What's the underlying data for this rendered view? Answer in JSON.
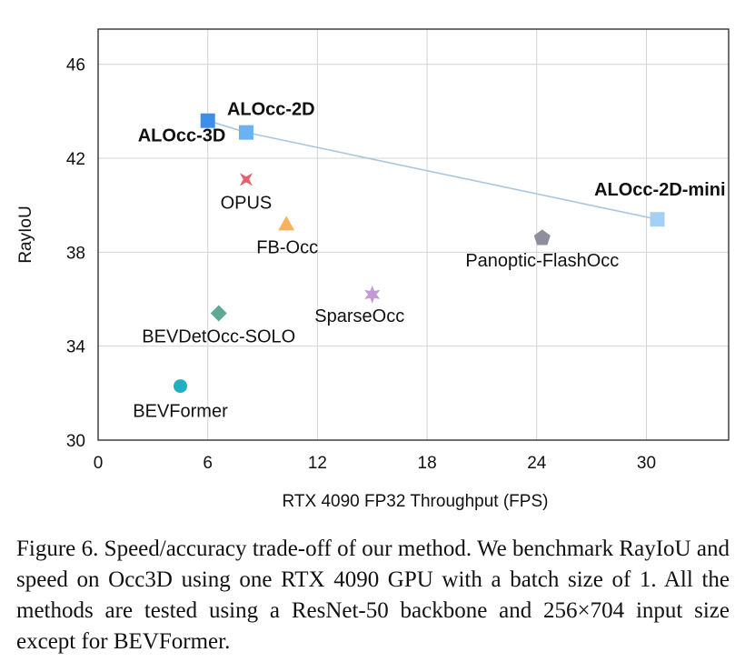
{
  "chart_data": {
    "type": "scatter",
    "xlabel": "RTX 4090 FP32 Throughput (FPS)",
    "ylabel": "RayIoU",
    "xlim": [
      0,
      34.5
    ],
    "ylim": [
      30,
      47.5
    ],
    "x_ticks": [
      0,
      6,
      12,
      18,
      24,
      30
    ],
    "y_ticks": [
      30,
      34,
      38,
      42,
      46
    ],
    "grid": true,
    "points": [
      {
        "name": "ALOcc-3D",
        "x": 6.0,
        "y": 43.6,
        "marker": "square",
        "color": "#3d8fea",
        "bold": true
      },
      {
        "name": "ALOcc-2D",
        "x": 8.1,
        "y": 43.1,
        "marker": "square",
        "color": "#6ab2f2",
        "bold": true
      },
      {
        "name": "ALOcc-2D-mini",
        "x": 30.6,
        "y": 39.4,
        "marker": "square",
        "color": "#a5d0f5",
        "bold": true
      },
      {
        "name": "OPUS",
        "x": 8.1,
        "y": 41.1,
        "marker": "star4",
        "color": "#e4606a",
        "bold": false
      },
      {
        "name": "FB-Occ",
        "x": 10.3,
        "y": 39.2,
        "marker": "triangle",
        "color": "#f6b25c",
        "bold": false
      },
      {
        "name": "Panoptic-FlashOcc",
        "x": 24.3,
        "y": 38.6,
        "marker": "pentagon",
        "color": "#8e8e9e",
        "bold": false
      },
      {
        "name": "SparseOcc",
        "x": 15.0,
        "y": 36.2,
        "marker": "star6",
        "color": "#c29ad6",
        "bold": false
      },
      {
        "name": "BEVDetOcc-SOLO",
        "x": 6.6,
        "y": 35.4,
        "marker": "diamond",
        "color": "#5fa896",
        "bold": false
      },
      {
        "name": "BEVFormer",
        "x": 4.5,
        "y": 32.3,
        "marker": "circle",
        "color": "#20b0c0",
        "bold": false
      }
    ],
    "trend_line": {
      "through": [
        "ALOcc-3D",
        "ALOcc-2D",
        "ALOcc-2D-mini"
      ],
      "color": "#a9c6e0"
    }
  },
  "caption": "Figure 6. Speed/accuracy trade-off of our method. We benchmark RayIoU and speed on Occ3D using one RTX 4090 GPU with a batch size of 1.  All the methods are tested using a ResNet-50 backbone and 256×704 input size except for BEVFormer."
}
